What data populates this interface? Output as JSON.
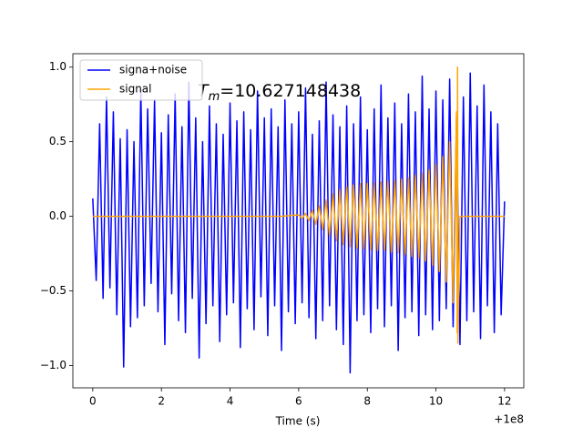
{
  "chart_data": {
    "type": "line",
    "xlabel": "Time (s)",
    "x_offset_label": "+1e8",
    "annotation": {
      "symbol": "T",
      "subscript": "m",
      "text": "=10.627148438"
    },
    "xlim": [
      -0.58,
      12.56
    ],
    "ylim": [
      -1.15,
      1.09
    ],
    "xticks": [
      0,
      2,
      4,
      6,
      8,
      10,
      12
    ],
    "yticks": [
      {
        "value": -1.0,
        "label": "−1.0"
      },
      {
        "value": -0.5,
        "label": "−0.5"
      },
      {
        "value": 0.0,
        "label": "0.0"
      },
      {
        "value": 0.5,
        "label": "0.5"
      },
      {
        "value": 1.0,
        "label": "1.0"
      }
    ],
    "legend": "upper left",
    "series": [
      {
        "name": "signa+noise",
        "color": "#0000ff",
        "x": [
          0,
          0.1,
          0.2,
          0.3,
          0.4,
          0.5,
          0.6,
          0.7,
          0.8,
          0.9,
          1,
          1.1,
          1.2,
          1.3,
          1.4,
          1.5,
          1.6,
          1.7,
          1.8,
          1.9,
          2,
          2.1,
          2.2,
          2.3,
          2.4,
          2.5,
          2.6,
          2.7,
          2.8,
          2.9,
          3,
          3.1,
          3.2,
          3.3,
          3.4,
          3.5,
          3.6,
          3.7,
          3.8,
          3.9,
          4,
          4.1,
          4.2,
          4.3,
          4.4,
          4.5,
          4.6,
          4.7,
          4.8,
          4.9,
          5,
          5.1,
          5.2,
          5.3,
          5.4,
          5.5,
          5.6,
          5.7,
          5.8,
          5.9,
          6,
          6.1,
          6.2,
          6.3,
          6.4,
          6.5,
          6.6,
          6.7,
          6.8,
          6.9,
          7,
          7.1,
          7.2,
          7.3,
          7.4,
          7.5,
          7.6,
          7.7,
          7.8,
          7.9,
          8,
          8.1,
          8.2,
          8.3,
          8.4,
          8.5,
          8.6,
          8.7,
          8.8,
          8.9,
          9,
          9.1,
          9.2,
          9.3,
          9.4,
          9.5,
          9.6,
          9.7,
          9.8,
          9.9,
          10,
          10.1,
          10.2,
          10.3,
          10.4,
          10.5,
          10.6,
          10.7,
          10.8,
          10.9,
          11,
          11.1,
          11.2,
          11.3,
          11.4,
          11.5,
          11.6,
          11.7,
          11.8,
          11.9,
          12
        ],
        "values": [
          0.12,
          -0.43,
          0.62,
          -0.55,
          0.8,
          -0.48,
          0.7,
          -0.66,
          0.52,
          -1.01,
          0.58,
          -0.74,
          0.5,
          -0.68,
          0.85,
          -0.6,
          0.72,
          -0.45,
          0.78,
          -0.64,
          0.56,
          -0.86,
          0.68,
          -0.52,
          0.82,
          -0.7,
          0.6,
          -0.78,
          0.9,
          -0.55,
          0.66,
          -0.95,
          0.5,
          -0.72,
          0.74,
          -0.6,
          0.62,
          -0.84,
          0.55,
          -0.66,
          0.76,
          -0.58,
          0.64,
          -0.88,
          0.7,
          -0.62,
          0.58,
          -0.76,
          0.84,
          -0.54,
          0.66,
          -0.8,
          0.72,
          -0.6,
          0.6,
          -0.9,
          0.78,
          -0.64,
          0.62,
          -0.72,
          0.7,
          -0.58,
          0.86,
          -0.68,
          0.55,
          -0.82,
          0.64,
          -0.7,
          0.9,
          -0.6,
          0.68,
          -0.76,
          0.6,
          -0.86,
          0.74,
          -1.05,
          0.62,
          -0.7,
          0.8,
          -0.66,
          0.58,
          -0.78,
          0.72,
          -0.62,
          0.88,
          -0.74,
          0.66,
          -0.6,
          0.76,
          -0.9,
          0.62,
          -0.68,
          0.82,
          -0.64,
          0.7,
          -0.8,
          0.94,
          -0.66,
          0.72,
          -0.76,
          0.84,
          -0.7,
          0.78,
          -0.62,
          0.92,
          -0.74,
          0.66,
          -0.86,
          0.8,
          -0.7,
          0.96,
          -0.64,
          0.74,
          -0.82,
          0.88,
          -0.6,
          0.7,
          -0.78,
          0.62,
          -0.66,
          0.1
        ]
      },
      {
        "name": "signal",
        "color": "#ffa500",
        "x": [
          0,
          5.5,
          6,
          6.1,
          6.2,
          6.3,
          6.4,
          6.5,
          6.6,
          6.7,
          6.8,
          6.9,
          7,
          7.1,
          7.2,
          7.3,
          7.4,
          7.5,
          7.6,
          7.7,
          7.8,
          7.9,
          8,
          8.1,
          8.2,
          8.3,
          8.4,
          8.5,
          8.6,
          8.7,
          8.8,
          8.9,
          9,
          9.1,
          9.2,
          9.3,
          9.4,
          9.5,
          9.6,
          9.7,
          9.8,
          9.9,
          10,
          10.1,
          10.2,
          10.3,
          10.4,
          10.5,
          10.6,
          10.62,
          10.63,
          10.64,
          10.7,
          12
        ],
        "values": [
          0,
          0,
          0.01,
          -0.015,
          0.02,
          -0.03,
          0.04,
          -0.055,
          0.07,
          -0.09,
          0.11,
          -0.13,
          0.15,
          -0.165,
          0.18,
          -0.19,
          0.2,
          -0.205,
          0.21,
          -0.215,
          0.22,
          -0.22,
          0.22,
          -0.225,
          0.225,
          -0.23,
          0.23,
          -0.23,
          0.235,
          -0.24,
          0.24,
          -0.245,
          0.25,
          -0.255,
          0.26,
          -0.27,
          0.275,
          -0.28,
          0.29,
          -0.3,
          0.31,
          -0.33,
          0.35,
          -0.37,
          0.4,
          -0.44,
          0.5,
          -0.58,
          0.7,
          -0.78,
          1.0,
          -0.85,
          0,
          0
        ]
      }
    ]
  }
}
